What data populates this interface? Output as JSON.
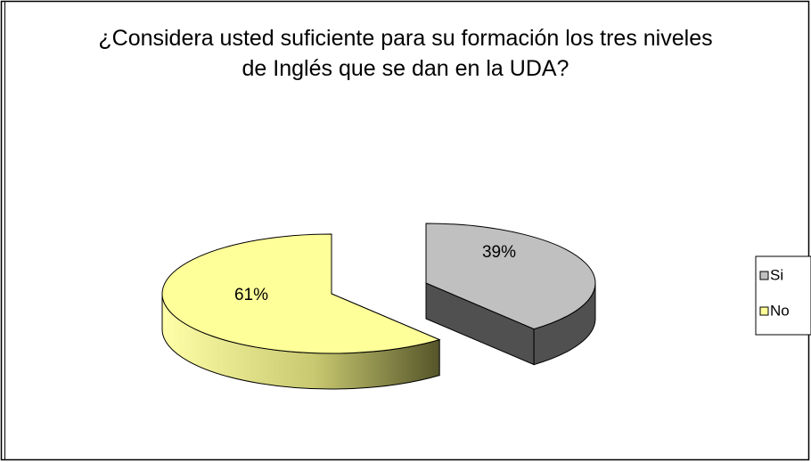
{
  "chart_data": {
    "type": "pie",
    "title": "¿Considera usted suficiente para su formación los tres niveles de Inglés que se dan en la UDA?",
    "categories": [
      "Si",
      "No"
    ],
    "values": [
      39,
      61
    ],
    "value_labels": [
      "39%",
      "61%"
    ],
    "colors": [
      "#c0c0c0",
      "#ffff99"
    ],
    "legend": "right"
  }
}
